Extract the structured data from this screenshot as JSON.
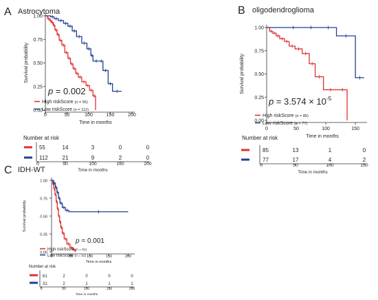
{
  "colors": {
    "high": "#e03030",
    "low": "#1f3f96"
  },
  "chart_data": [
    {
      "type": "line",
      "panel_label": "A",
      "title": "Astrocytoma",
      "xlabel": "Time in months",
      "ylabel": "Survival probability",
      "xlim": [
        0,
        200
      ],
      "ylim": [
        0,
        1
      ],
      "x_ticks": [
        "0",
        "50",
        "100",
        "150",
        "200"
      ],
      "y_ticks": [
        "0.00",
        "0.25",
        "0.50",
        "0.75",
        "1.00"
      ],
      "legend_position": "bottom-left",
      "p_value_label": "p",
      "p_value": "= 0.002",
      "series": [
        {
          "name": "High riskScore",
          "n": "(n = 55)",
          "color_key": "high",
          "x": [
            0,
            5,
            10,
            14,
            18,
            22,
            27,
            32,
            38,
            45,
            52,
            58,
            64,
            70,
            76,
            84,
            94,
            102,
            110,
            116
          ],
          "y": [
            1.0,
            0.97,
            0.95,
            0.93,
            0.9,
            0.85,
            0.8,
            0.74,
            0.69,
            0.61,
            0.55,
            0.49,
            0.44,
            0.39,
            0.35,
            0.3,
            0.26,
            0.21,
            0.15,
            0.0
          ]
        },
        {
          "name": "Low riskScore",
          "n": "(n = 112)",
          "color_key": "low",
          "x": [
            0,
            12,
            20,
            30,
            42,
            52,
            62,
            72,
            84,
            96,
            105,
            110,
            125,
            133,
            145,
            155,
            176
          ],
          "y": [
            1.0,
            0.99,
            0.97,
            0.95,
            0.92,
            0.89,
            0.84,
            0.78,
            0.71,
            0.65,
            0.58,
            0.52,
            0.52,
            0.42,
            0.28,
            0.2,
            0.2
          ]
        }
      ],
      "risk_table": {
        "title": "Number at risk",
        "x": [
          0,
          50,
          100,
          150,
          200
        ],
        "x_ticks": [
          "0",
          "50",
          "100",
          "150",
          "200"
        ],
        "xlabel": "Time in months",
        "rows": [
          {
            "color_key": "high",
            "values": [
              "55",
              "14",
              "3",
              "0",
              "0"
            ]
          },
          {
            "color_key": "low",
            "values": [
              "112",
              "21",
              "9",
              "2",
              "0"
            ]
          }
        ]
      }
    },
    {
      "type": "line",
      "panel_label": "B",
      "title": "oligodendroglioma",
      "xlabel": "Time in months",
      "ylabel": "Survival probability",
      "xlim": [
        0,
        150
      ],
      "ylim": [
        0,
        1
      ],
      "x_ticks": [
        "0",
        "50",
        "100",
        "150"
      ],
      "y_ticks": [
        "0.00",
        "0.25",
        "0.50",
        "0.75",
        "1.00"
      ],
      "legend_position": "bottom-left",
      "p_value_label": "p",
      "p_value": "= 3.574 × 10",
      "p_value_exp": "-5",
      "series": [
        {
          "name": "High riskScore",
          "n": "(n = 85)",
          "color_key": "high",
          "x": [
            0,
            5,
            10,
            16,
            22,
            30,
            38,
            48,
            60,
            72,
            82,
            96,
            120,
            136
          ],
          "y": [
            1.0,
            0.96,
            0.94,
            0.91,
            0.88,
            0.85,
            0.8,
            0.77,
            0.72,
            0.61,
            0.47,
            0.33,
            0.33,
            0.0
          ]
        },
        {
          "name": "Low riskScore",
          "n": "(n = 77)",
          "color_key": "low",
          "x": [
            0,
            30,
            60,
            90,
            118,
            150,
            165
          ],
          "y": [
            1.0,
            1.0,
            1.0,
            1.0,
            0.91,
            0.46,
            0.46
          ]
        }
      ],
      "risk_table": {
        "title": "Number at risk",
        "x": [
          0,
          50,
          100,
          150
        ],
        "x_ticks": [
          "0",
          "50",
          "100",
          "150"
        ],
        "xlabel": "Time in months",
        "rows": [
          {
            "color_key": "high",
            "values": [
              "85",
              "13",
              "1",
              "0"
            ]
          },
          {
            "color_key": "low",
            "values": [
              "77",
              "17",
              "4",
              "2"
            ]
          }
        ]
      }
    },
    {
      "type": "line",
      "panel_label": "C",
      "title": "IDH-WT",
      "xlabel": "Time in months",
      "ylabel": "Survival probability",
      "xlim": [
        0,
        200
      ],
      "ylim": [
        0,
        1
      ],
      "x_ticks": [
        "0",
        "50",
        "100",
        "150",
        "200"
      ],
      "y_ticks": [
        "0.00",
        "0.25",
        "0.50",
        "0.75",
        "1.00"
      ],
      "legend_position": "bottom-left",
      "p_value_label": "p",
      "p_value": "= 0.001",
      "series": [
        {
          "name": "High riskScore",
          "n": "(n = 61)",
          "color_key": "high",
          "x": [
            0,
            3,
            6,
            9,
            12,
            15,
            18,
            21,
            24,
            28,
            33,
            40,
            48,
            56,
            62
          ],
          "y": [
            1.0,
            0.95,
            0.88,
            0.8,
            0.7,
            0.6,
            0.5,
            0.42,
            0.34,
            0.26,
            0.18,
            0.11,
            0.06,
            0.03,
            0.0
          ]
        },
        {
          "name": "Low riskScore",
          "n": "(n = 31)",
          "color_key": "low",
          "x": [
            0,
            5,
            10,
            14,
            18,
            22,
            28,
            36,
            45,
            200
          ],
          "y": [
            1.0,
            0.96,
            0.9,
            0.83,
            0.75,
            0.68,
            0.62,
            0.58,
            0.56,
            0.56
          ]
        }
      ],
      "risk_table": {
        "title": "Number at risk",
        "x": [
          0,
          50,
          100,
          150,
          200
        ],
        "x_ticks": [
          "0",
          "50",
          "100",
          "150",
          "200"
        ],
        "xlabel": "Time in months",
        "rows": [
          {
            "color_key": "high",
            "values": [
              "61",
              "2",
              "0",
              "0",
              "0"
            ]
          },
          {
            "color_key": "low",
            "values": [
              "31",
              "2",
              "1",
              "1",
              "1"
            ]
          }
        ]
      }
    }
  ]
}
